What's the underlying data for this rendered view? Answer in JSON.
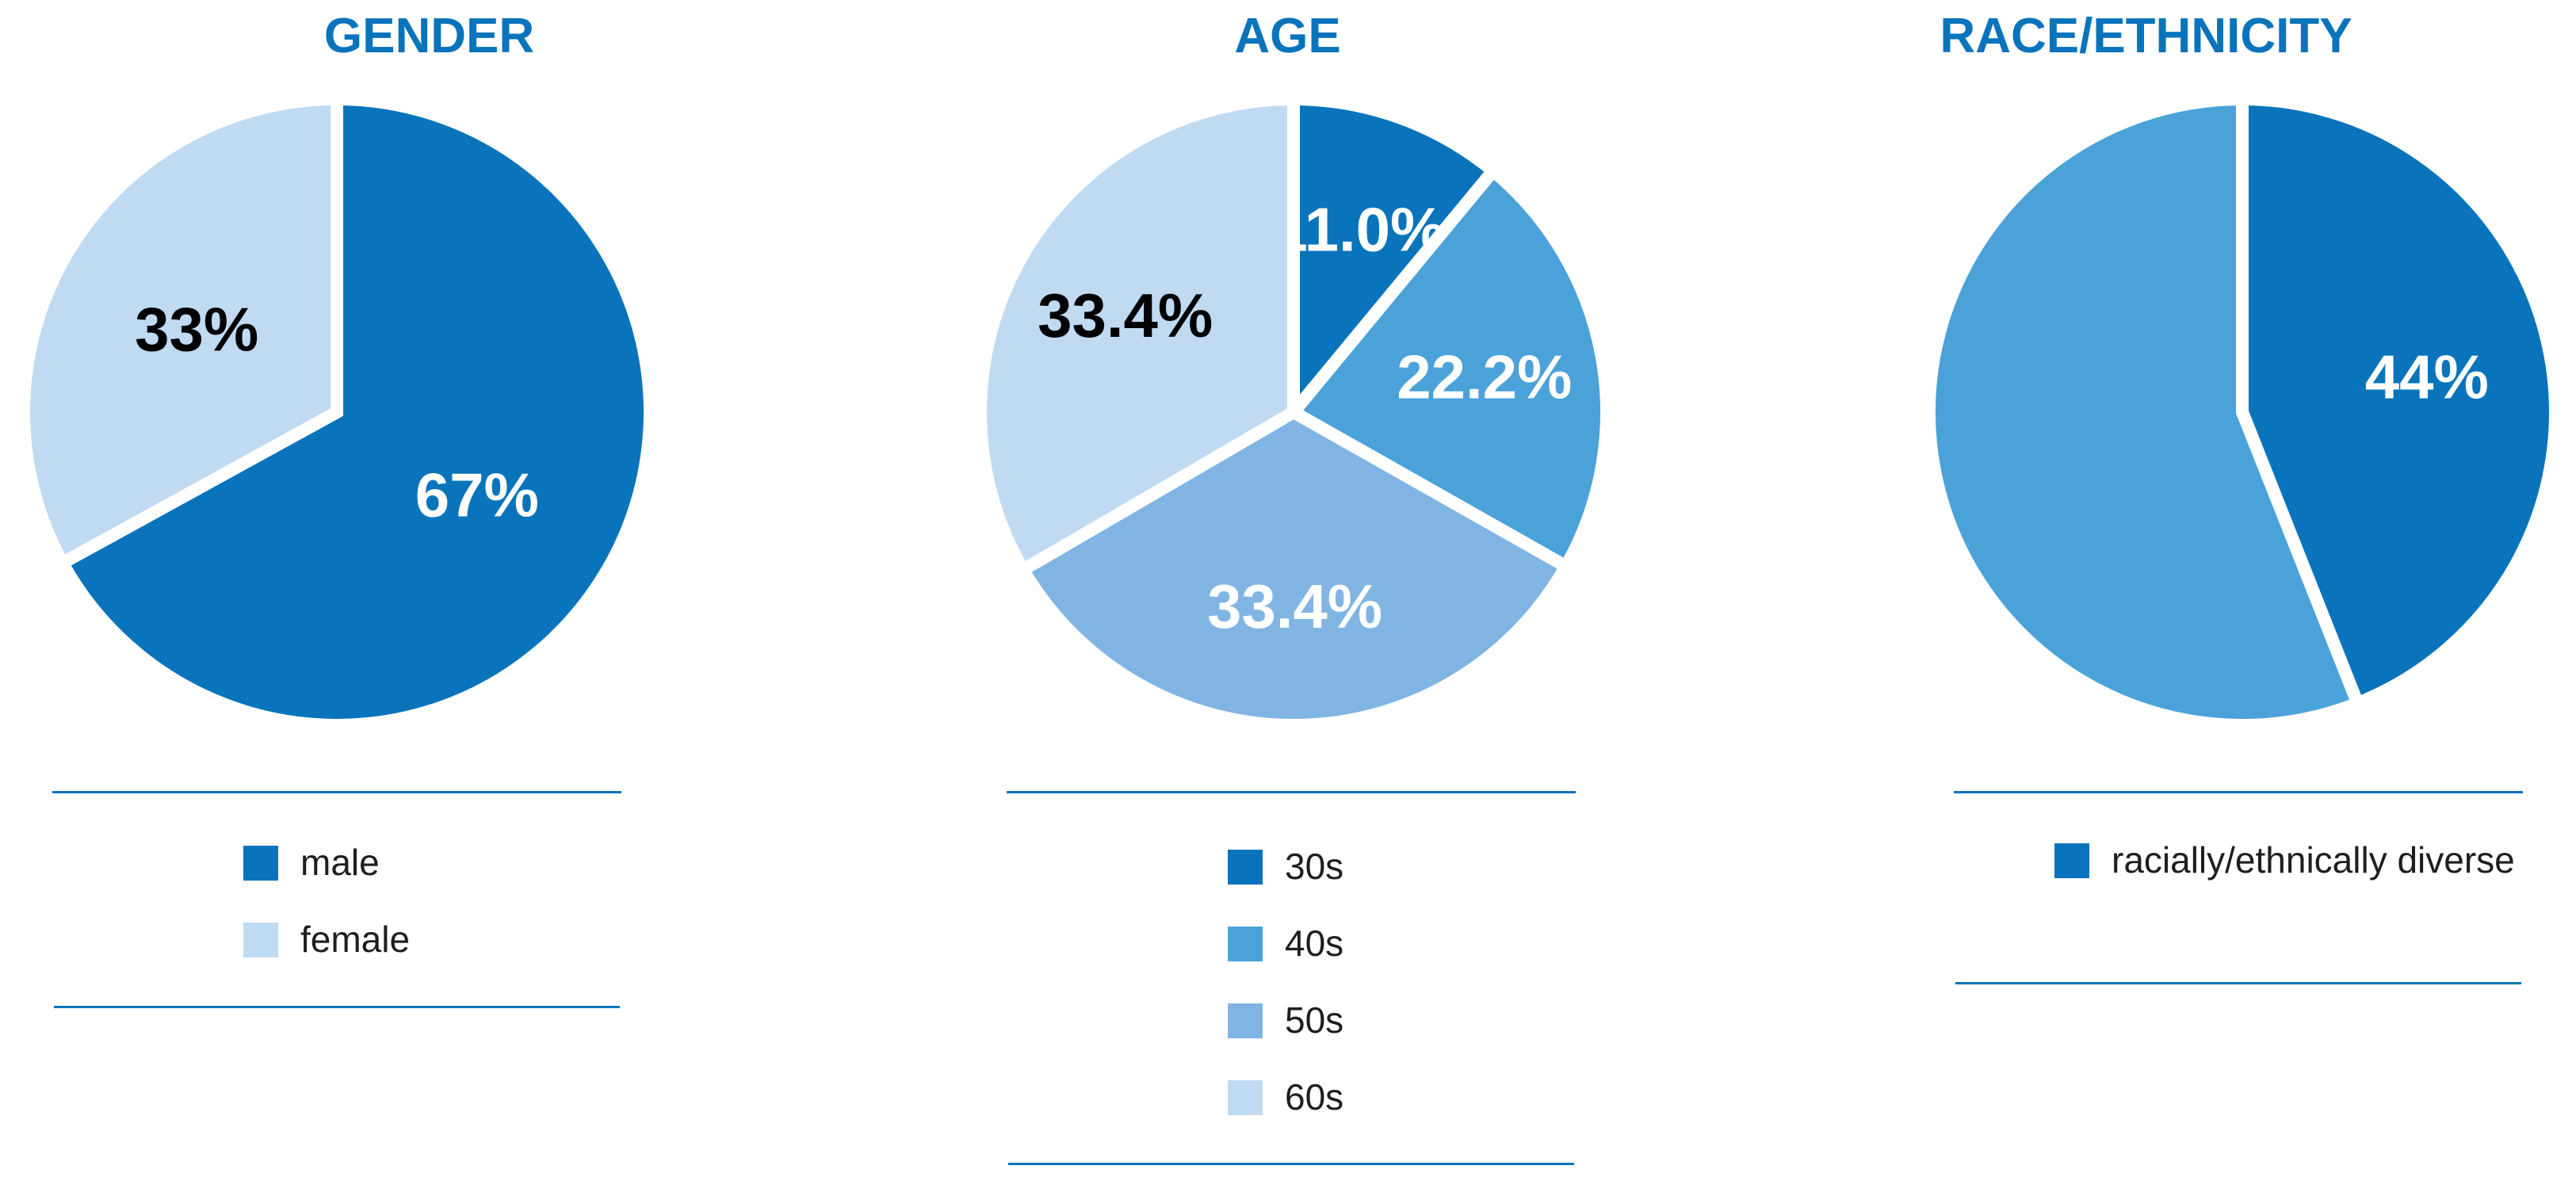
{
  "colors": {
    "title": "#0974bb",
    "rule": "#0974bb",
    "dark_blue": "#0974bb",
    "medium_blue": "#4aa2d9",
    "light_mid_blue": "#80b5e3",
    "pale_blue": "#c0daf2",
    "label_dark": "#000000",
    "label_light": "#ffffff"
  },
  "chart_data": [
    {
      "type": "pie",
      "title": "GENDER",
      "slices": [
        {
          "name": "male",
          "value": 67,
          "label": "67%",
          "color": "#0974bb",
          "label_color": "#ffffff"
        },
        {
          "name": "female",
          "value": 33,
          "label": "33%",
          "color": "#c0daf2",
          "label_color": "#000000"
        }
      ],
      "legend": [
        {
          "label": "male",
          "color": "#0974bb"
        },
        {
          "label": "female",
          "color": "#c0daf2"
        }
      ]
    },
    {
      "type": "pie",
      "title": "AGE",
      "slices": [
        {
          "name": "30s",
          "value": 11.0,
          "label": "11.0%",
          "color": "#0974bb",
          "label_color": "#ffffff"
        },
        {
          "name": "40s",
          "value": 22.2,
          "label": "22.2%",
          "color": "#4aa2d9",
          "label_color": "#ffffff"
        },
        {
          "name": "50s",
          "value": 33.4,
          "label": "33.4%",
          "color": "#80b5e3",
          "label_color": "#ffffff"
        },
        {
          "name": "60s",
          "value": 33.4,
          "label": "33.4%",
          "color": "#c0daf2",
          "label_color": "#000000"
        }
      ],
      "legend": [
        {
          "label": "30s",
          "color": "#0974bb"
        },
        {
          "label": "40s",
          "color": "#4aa2d9"
        },
        {
          "label": "50s",
          "color": "#80b5e3"
        },
        {
          "label": "60s",
          "color": "#c0daf2"
        }
      ]
    },
    {
      "type": "pie",
      "title": "RACE/ETHNICITY",
      "slices": [
        {
          "name": "racially/ethnically diverse",
          "value": 44,
          "label": "44%",
          "color": "#0974bb",
          "label_color": "#ffffff"
        },
        {
          "name": "",
          "value": 56,
          "label": "",
          "color": "#4aa2d9",
          "label_color": "#ffffff"
        }
      ],
      "legend": [
        {
          "label": "racially/ethnically diverse",
          "color": "#0974bb"
        }
      ]
    }
  ]
}
